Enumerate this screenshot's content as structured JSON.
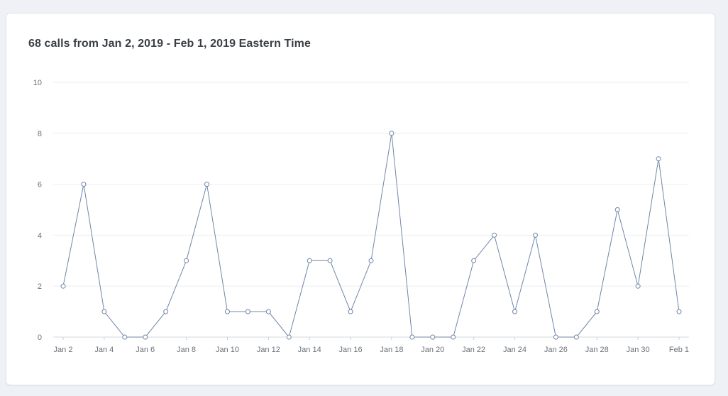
{
  "card": {
    "title": "68 calls from Jan 2, 2019 - Feb 1, 2019 Eastern Time"
  },
  "chart_data": {
    "type": "line",
    "title": "68 calls from Jan 2, 2019 - Feb 1, 2019 Eastern Time",
    "xlabel": "",
    "ylabel": "",
    "ylim": [
      0,
      10
    ],
    "y_ticks": [
      0,
      2,
      4,
      6,
      8,
      10
    ],
    "grid": true,
    "x": [
      "2019-01-02",
      "2019-01-03",
      "2019-01-04",
      "2019-01-05",
      "2019-01-06",
      "2019-01-07",
      "2019-01-08",
      "2019-01-09",
      "2019-01-10",
      "2019-01-11",
      "2019-01-12",
      "2019-01-13",
      "2019-01-14",
      "2019-01-15",
      "2019-01-16",
      "2019-01-17",
      "2019-01-18",
      "2019-01-19",
      "2019-01-20",
      "2019-01-21",
      "2019-01-22",
      "2019-01-23",
      "2019-01-24",
      "2019-01-25",
      "2019-01-26",
      "2019-01-27",
      "2019-01-28",
      "2019-01-29",
      "2019-01-30",
      "2019-01-31",
      "2019-02-01"
    ],
    "x_tick_labels": [
      "Jan 2",
      "Jan 4",
      "Jan 6",
      "Jan 8",
      "Jan 10",
      "Jan 12",
      "Jan 14",
      "Jan 16",
      "Jan 18",
      "Jan 20",
      "Jan 22",
      "Jan 24",
      "Jan 26",
      "Jan 28",
      "Jan 30",
      "Feb 1"
    ],
    "series": [
      {
        "values": [
          2,
          6,
          1,
          0,
          0,
          1,
          3,
          6,
          1,
          1,
          1,
          0,
          3,
          3,
          1,
          3,
          8,
          0,
          0,
          0,
          3,
          4,
          1,
          4,
          0,
          0,
          1,
          5,
          2,
          7,
          1
        ]
      }
    ],
    "colors": {
      "line": "#6f86a8",
      "grid": "#eceef1",
      "axis": "#d4d8dd",
      "tick_text": "#6b7178"
    }
  }
}
